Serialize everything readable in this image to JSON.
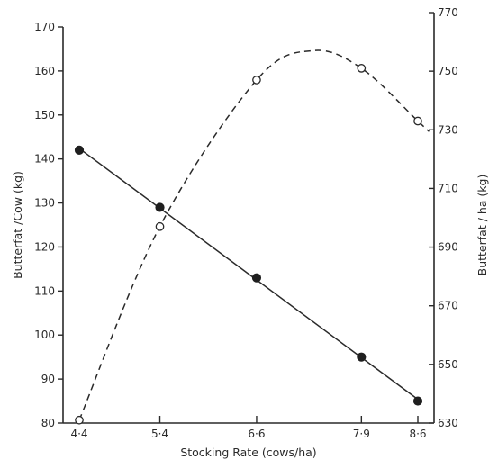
{
  "chart_data": {
    "type": "line",
    "title": "",
    "xlabel": "Stocking Rate (cows/ha)",
    "ylabel_left": "Butterfat /Cow (kg)",
    "ylabel_right": "Butterfat / ha (kg)",
    "x": [
      4.4,
      5.4,
      6.6,
      7.9,
      8.6
    ],
    "x_tick_labels": [
      "4·4",
      "5·4",
      "6·6",
      "7·9",
      "8·6"
    ],
    "xlim": [
      4.4,
      8.6
    ],
    "ylim_left": [
      80,
      170
    ],
    "ylim_right": [
      630,
      770
    ],
    "y_ticks_left": [
      80,
      90,
      100,
      110,
      120,
      130,
      140,
      150,
      160,
      170
    ],
    "y_ticks_right": [
      630,
      650,
      670,
      690,
      710,
      730,
      750,
      770
    ],
    "grid": false,
    "series": [
      {
        "axis": "left",
        "style": "solid-line-filled-circles",
        "values": [
          142,
          129,
          113,
          95,
          85
        ]
      },
      {
        "axis": "right",
        "style": "dashed-curve-open-circles",
        "values": [
          631,
          697,
          747,
          751,
          733
        ],
        "curve_peak": [
          7.3,
          757
        ]
      }
    ]
  }
}
